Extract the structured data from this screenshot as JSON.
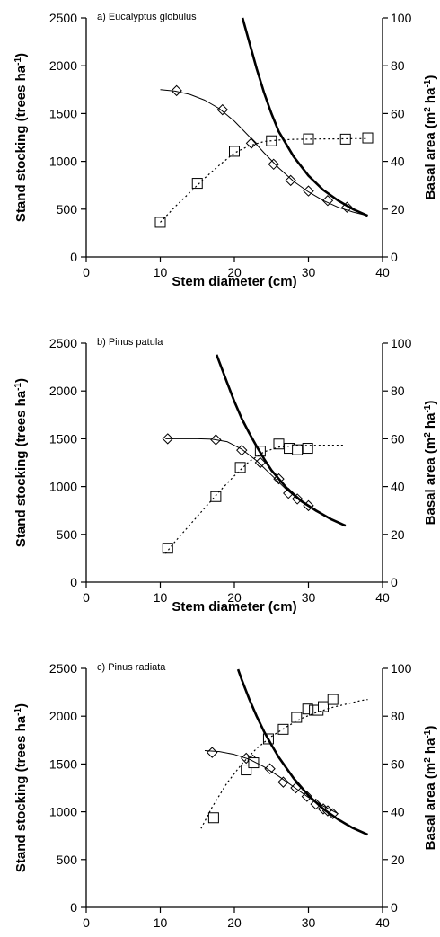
{
  "chart_data": [
    {
      "type": "scatter",
      "title": "a) Eucalyptus globulus",
      "xlabel": "Stem diameter (cm)",
      "ylabel": "Stand stocking (trees ha-1)",
      "y2label": "Basal area (m2 ha-1)",
      "xlim": [
        0,
        40
      ],
      "ylim": [
        0,
        2500
      ],
      "y2lim": [
        0,
        100
      ],
      "xticks": [
        "0",
        "10",
        "20",
        "30",
        "40"
      ],
      "yticks": [
        "0",
        "500",
        "1000",
        "1500",
        "2000",
        "2500"
      ],
      "y2ticks": [
        "0",
        "20",
        "40",
        "60",
        "80",
        "100"
      ],
      "grid": false,
      "series": [
        {
          "marker": "diamond",
          "axis": "left",
          "x": [
            12.2,
            18.4,
            22.3,
            25.3,
            27.6,
            30.0,
            32.6,
            35.2
          ],
          "y": [
            1740,
            1540,
            1190,
            970,
            800,
            690,
            590,
            520
          ]
        },
        {
          "marker": "square",
          "axis": "right",
          "x": [
            10.0,
            15.0,
            20.0,
            25.0,
            30.0,
            35.0,
            38.0
          ],
          "y": [
            14.5,
            30.8,
            44.2,
            48.6,
            49.4,
            49.3,
            49.8
          ]
        },
        {
          "line": "thin-fit",
          "axis": "left",
          "x": [
            10,
            12,
            14,
            16,
            18,
            20,
            22,
            24,
            26,
            28,
            30,
            32,
            34,
            36,
            38
          ],
          "y": [
            1750,
            1735,
            1700,
            1640,
            1550,
            1420,
            1260,
            1090,
            930,
            790,
            680,
            590,
            520,
            470,
            430
          ]
        },
        {
          "line": "dotted-fit",
          "axis": "right",
          "x": [
            10,
            12,
            14,
            16,
            18,
            20,
            22,
            24,
            26,
            28,
            30,
            32,
            34,
            36,
            38
          ],
          "y": [
            14.5,
            21,
            27,
            33,
            38.5,
            43.5,
            46.5,
            48.3,
            48.9,
            49.2,
            49.3,
            49.4,
            49.4,
            49.5,
            49.5
          ]
        },
        {
          "line": "bold-curve",
          "axis": "left",
          "x": [
            21.1,
            22,
            23,
            24,
            25,
            26,
            28,
            30,
            32,
            34,
            36,
            38
          ],
          "y": [
            2500,
            2250,
            1970,
            1720,
            1500,
            1310,
            1050,
            850,
            700,
            590,
            500,
            430
          ]
        }
      ]
    },
    {
      "type": "scatter",
      "title": "b) Pinus patula",
      "xlabel": "Stem diameter (cm)",
      "ylabel": "Stand stocking (trees ha-1)",
      "y2label": "Basal area (m2 ha-1)",
      "xlim": [
        0,
        40
      ],
      "ylim": [
        0,
        2500
      ],
      "y2lim": [
        0,
        100
      ],
      "xticks": [
        "0",
        "10",
        "20",
        "30",
        "40"
      ],
      "yticks": [
        "0",
        "500",
        "1000",
        "1500",
        "2000",
        "2500"
      ],
      "y2ticks": [
        "0",
        "20",
        "40",
        "60",
        "80",
        "100"
      ],
      "grid": false,
      "series": [
        {
          "marker": "diamond",
          "axis": "left",
          "x": [
            11.0,
            17.5,
            21.0,
            23.5,
            26.0,
            27.3,
            28.5,
            30.0
          ],
          "y": [
            1500,
            1490,
            1380,
            1250,
            1080,
            930,
            870,
            800
          ]
        },
        {
          "marker": "square",
          "axis": "right",
          "x": [
            11.0,
            17.5,
            20.8,
            23.5,
            26.0,
            27.4,
            28.5,
            29.9
          ],
          "y": [
            14.2,
            35.8,
            48.0,
            54.8,
            57.8,
            56.0,
            55.4,
            56.0
          ]
        },
        {
          "line": "thin-fit",
          "axis": "left",
          "x": [
            10.7,
            13,
            15,
            17,
            19,
            21,
            23,
            25,
            27,
            29,
            31,
            33,
            35
          ],
          "y": [
            1500,
            1500,
            1500,
            1495,
            1470,
            1390,
            1270,
            1120,
            970,
            840,
            740,
            660,
            590
          ]
        },
        {
          "line": "dotted-fit",
          "axis": "right",
          "x": [
            10.7,
            12,
            14,
            16,
            18,
            20,
            22,
            24,
            26,
            28,
            30,
            32,
            35
          ],
          "y": [
            12,
            17,
            24,
            31,
            38,
            44.5,
            50.5,
            54.5,
            56.5,
            57.1,
            57.2,
            57.3,
            57.3
          ]
        },
        {
          "line": "bold-curve",
          "axis": "left",
          "x": [
            17.6,
            19,
            20,
            21,
            22,
            23,
            24,
            25,
            27,
            29,
            31,
            33,
            35
          ],
          "y": [
            2380,
            2090,
            1890,
            1710,
            1560,
            1420,
            1290,
            1170,
            990,
            850,
            750,
            660,
            590
          ]
        }
      ]
    },
    {
      "type": "scatter",
      "title": "c) Pinus radiata",
      "xlabel": "",
      "ylabel": "Stand stocking (trees ha-1)",
      "y2label": "Basal area (m2 ha-1)",
      "xlim": [
        0,
        40
      ],
      "ylim": [
        0,
        2500
      ],
      "y2lim": [
        0,
        100
      ],
      "xticks": [
        "0",
        "10",
        "20",
        "30",
        "40"
      ],
      "yticks": [
        "0",
        "500",
        "1000",
        "1500",
        "2000",
        "2500"
      ],
      "y2ticks": [
        "0",
        "20",
        "40",
        "60",
        "80",
        "100"
      ],
      "grid": false,
      "series": [
        {
          "marker": "diamond",
          "axis": "left",
          "x": [
            17.0,
            21.6,
            22.5,
            24.8,
            26.6,
            28.3,
            29.8,
            31.0,
            32.0,
            32.6,
            33.3
          ],
          "y": [
            1620,
            1560,
            1540,
            1450,
            1310,
            1250,
            1160,
            1080,
            1030,
            1010,
            980
          ]
        },
        {
          "marker": "square",
          "axis": "right",
          "x": [
            17.2,
            21.6,
            22.6,
            24.6,
            26.6,
            28.4,
            29.9,
            30.8,
            31.3,
            32.0,
            33.3
          ],
          "y": [
            37.5,
            57.5,
            60.5,
            70.5,
            74.5,
            79.5,
            83.0,
            82.5,
            82.5,
            84.0,
            87.0
          ]
        },
        {
          "line": "thin-fit",
          "axis": "left",
          "x": [
            16,
            18,
            20,
            22,
            24,
            26,
            28,
            30,
            32,
            34
          ],
          "y": [
            1640,
            1630,
            1600,
            1550,
            1470,
            1370,
            1260,
            1150,
            1060,
            980
          ]
        },
        {
          "line": "dotted-fit",
          "axis": "right",
          "x": [
            15.5,
            17,
            19,
            21,
            23,
            25,
            27,
            29,
            31,
            33,
            35,
            37,
            38
          ],
          "y": [
            33,
            42,
            52,
            60,
            66.5,
            71.5,
            75.5,
            79,
            81.5,
            83.5,
            85,
            86.5,
            87
          ]
        },
        {
          "line": "bold-curve",
          "axis": "left",
          "x": [
            20.5,
            21,
            22,
            23,
            24,
            25,
            26,
            28,
            30,
            32,
            34,
            36,
            38
          ],
          "y": [
            2490,
            2380,
            2180,
            2000,
            1840,
            1700,
            1570,
            1350,
            1170,
            1030,
            920,
            830,
            760
          ]
        }
      ]
    }
  ]
}
